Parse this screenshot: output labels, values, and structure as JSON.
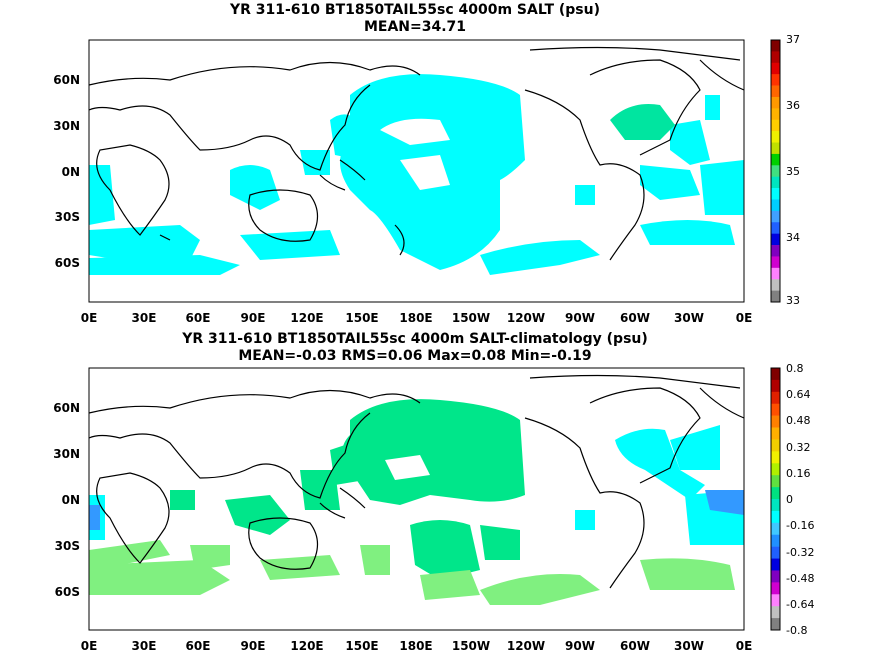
{
  "panels": [
    {
      "title_line1": "YR 311-610 BT1850TAIL55sc 4000m SALT (psu)",
      "title_line2": "MEAN=34.71",
      "x_ticks": [
        "0E",
        "30E",
        "60E",
        "90E",
        "120E",
        "150E",
        "180E",
        "150W",
        "120W",
        "90W",
        "60W",
        "30W",
        "0E"
      ],
      "y_ticks": [
        "60N",
        "30N",
        "0N",
        "30S",
        "60S"
      ],
      "colorbar": {
        "labels": [
          "37",
          "36",
          "35",
          "34",
          "33"
        ],
        "colors": [
          "#7f0000",
          "#b00000",
          "#e00000",
          "#ff3300",
          "#ff6600",
          "#ff9900",
          "#ffb300",
          "#ffd000",
          "#f0f000",
          "#c0e000",
          "#00d000",
          "#40e080",
          "#00e5c0",
          "#00ffff",
          "#00d0ff",
          "#40a0ff",
          "#2060ff",
          "#0000e0",
          "#8000c0",
          "#d000d0",
          "#ff80ff",
          "#c0c0c0",
          "#808080"
        ]
      },
      "ocean_color": "#00ffff",
      "secondary_color": "#00e5a0"
    },
    {
      "title_line1": "YR 311-610 BT1850TAIL55sc 4000m SALT-climatology (psu)",
      "title_line2": "MEAN=-0.03   RMS=0.06   Max=0.08   Min=-0.19",
      "x_ticks": [
        "0E",
        "30E",
        "60E",
        "90E",
        "120E",
        "150E",
        "180E",
        "150W",
        "120W",
        "90W",
        "60W",
        "30W",
        "0E"
      ],
      "y_ticks": [
        "60N",
        "30N",
        "0N",
        "30S",
        "60S"
      ],
      "colorbar": {
        "labels": [
          "0.8",
          "0.64",
          "0.48",
          "0.32",
          "0.16",
          "0",
          "-0.16",
          "-0.32",
          "-0.48",
          "-0.64",
          "-0.8"
        ],
        "colors": [
          "#7f0000",
          "#b00000",
          "#e02000",
          "#ff5000",
          "#ff8000",
          "#ffb000",
          "#f0d000",
          "#f0f000",
          "#b0f000",
          "#60e040",
          "#00e080",
          "#00e5c0",
          "#00ffff",
          "#40c8ff",
          "#2090ff",
          "#2060ff",
          "#0000e0",
          "#8000c0",
          "#d000d0",
          "#ff80ff",
          "#c0c0c0",
          "#808080"
        ]
      },
      "green_color": "#00e68a",
      "lightgreen_color": "#80f080",
      "cyan_color": "#00ffff",
      "blue_color": "#3399ff"
    }
  ]
}
